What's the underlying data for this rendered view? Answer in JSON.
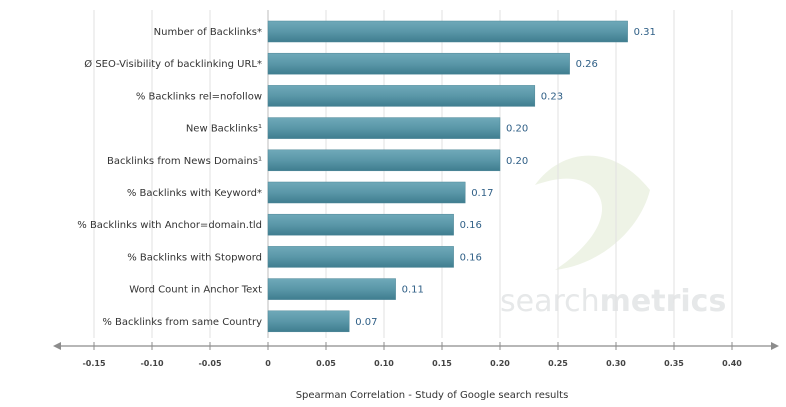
{
  "chart_data": {
    "type": "bar",
    "orientation": "horizontal",
    "xlabel": "Spearman Correlation - Study of Google search results",
    "xlim": [
      -0.15,
      0.4
    ],
    "ticks": [
      -0.15,
      -0.1,
      -0.05,
      0,
      0.05,
      0.1,
      0.15,
      0.2,
      0.25,
      0.3,
      0.35,
      0.4
    ],
    "tick_labels": [
      "-0.15",
      "-0.10",
      "-0.05",
      "0",
      "0.05",
      "0.10",
      "0.15",
      "0.20",
      "0.25",
      "0.30",
      "0.35",
      "0.40"
    ],
    "grid": true,
    "categories": [
      "Number of Backlinks*",
      "Ø SEO-Visibility of backlinking URL*",
      "% Backlinks rel=nofollow",
      "New Backlinks¹",
      "Backlinks from News Domains¹",
      "% Backlinks with Keyword*",
      "% Backlinks with Anchor=domain.tld",
      "% Backlinks with Stopword",
      "Word Count in Anchor Text",
      "% Backlinks from same Country"
    ],
    "values": [
      0.31,
      0.26,
      0.23,
      0.2,
      0.2,
      0.17,
      0.16,
      0.16,
      0.11,
      0.07
    ],
    "value_labels": [
      "0.31",
      "0.26",
      "0.23",
      "0.20",
      "0.20",
      "0.17",
      "0.16",
      "0.16",
      "0.11",
      "0.07"
    ],
    "bar_color": "#5a97a8",
    "value_label_color": "#2f5f86"
  },
  "watermark": {
    "part1": "search",
    "part2": "metrics"
  }
}
